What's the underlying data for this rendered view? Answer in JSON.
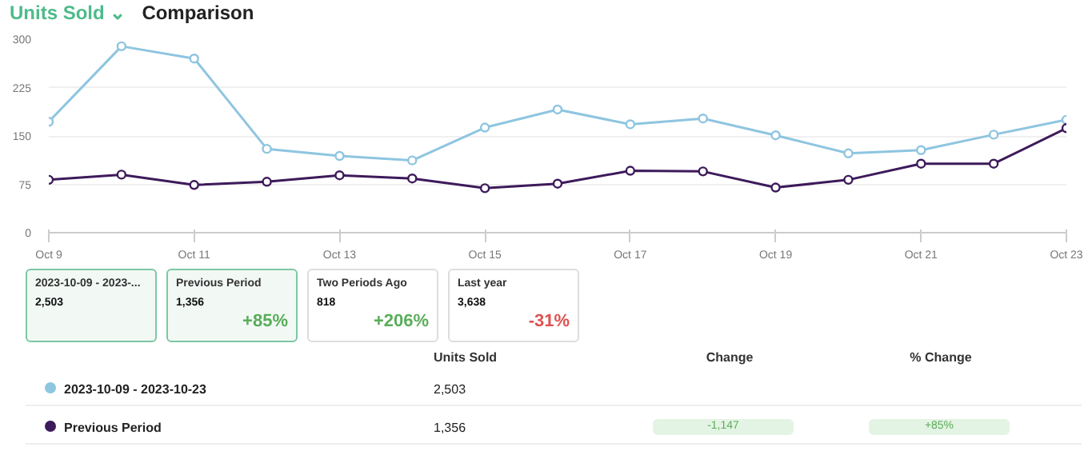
{
  "chart_data": {
    "type": "line",
    "title": "Units Sold ⌄",
    "subtitle": "Comparison",
    "x": [
      "2023-10-09",
      "2023-10-10",
      "2023-10-11",
      "2023-10-12",
      "2023-10-13",
      "2023-10-14",
      "2023-10-15",
      "2023-10-16",
      "2023-10-17",
      "2023-10-18",
      "2023-10-19",
      "2023-10-20",
      "2023-10-21",
      "2023-10-22",
      "2023-10-23"
    ],
    "series": [
      {
        "name": "2023-10-09 - 2023-10-23",
        "color": "#8ec5e0",
        "values": [
          172,
          289,
          270,
          130,
          119,
          112,
          163,
          191,
          168,
          177,
          151,
          123,
          128,
          152,
          175
        ]
      },
      {
        "name": "Previous Period",
        "color": "#3d1a5b",
        "values": [
          82,
          90,
          74,
          79,
          89,
          84,
          69,
          76,
          96,
          95,
          70,
          82,
          107,
          107,
          162
        ]
      }
    ],
    "xlim": [
      "2023-10-09",
      "2023-10-23"
    ],
    "xticks": [
      {
        "value": "2023-10-09",
        "label": "Oct 9"
      },
      {
        "value": "2023-10-11",
        "label": "Oct 11"
      },
      {
        "value": "2023-10-13",
        "label": "Oct 13"
      },
      {
        "value": "2023-10-15",
        "label": "Oct 15"
      },
      {
        "value": "2023-10-17",
        "label": "Oct 17"
      },
      {
        "value": "2023-10-19",
        "label": "Oct 19"
      },
      {
        "value": "2023-10-21",
        "label": "Oct 21"
      },
      {
        "value": "2023-10-23",
        "label": "Oct 23"
      }
    ],
    "ylim": [
      0,
      300
    ],
    "yticks": [
      0,
      75,
      150,
      225,
      300
    ],
    "grid": "y",
    "legend": "bottom",
    "marker": "circle",
    "line_style": "solid",
    "annotations": [
      "2023-10-09 - 2023-...",
      "2,503",
      "Previous Period",
      "1,356",
      "+85%",
      "Two Periods Ago",
      "818",
      "+206%",
      "Last year",
      "3,638",
      "-31%",
      "Units Sold",
      "Change",
      "% Change",
      "2,503",
      "1,356",
      "-1,147",
      "+85%"
    ]
  }
}
